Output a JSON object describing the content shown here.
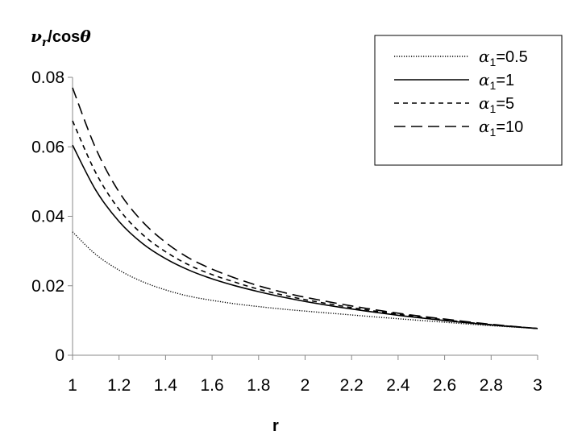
{
  "chart_data": {
    "type": "line",
    "title": "",
    "ylabel": "ν_r/cosθ",
    "ylabel_parts": {
      "main": "ν",
      "sub": "r",
      "rest": "/cos",
      "theta": "θ"
    },
    "xlabel": "r",
    "xlim": [
      1,
      3
    ],
    "ylim": [
      0,
      0.08
    ],
    "x_ticks": [
      1,
      1.2,
      1.4,
      1.6,
      1.8,
      2,
      2.2,
      2.4,
      2.6,
      2.8,
      3
    ],
    "x_tick_labels": [
      "1",
      "1.2",
      "1.4",
      "1.6",
      "1.8",
      "2",
      "2.2",
      "2.4",
      "2.6",
      "2.8",
      "3"
    ],
    "y_ticks": [
      0,
      0.02,
      0.04,
      0.06,
      0.08
    ],
    "y_tick_labels": [
      "0",
      "0.02",
      "0.04",
      "0.06",
      "0.08"
    ],
    "grid": false,
    "legend_position": "top-right",
    "x": [
      1,
      1.1,
      1.2,
      1.3,
      1.4,
      1.5,
      1.6,
      1.7,
      1.8,
      1.9,
      2,
      2.2,
      2.4,
      2.6,
      2.8,
      3
    ],
    "series": [
      {
        "name": "α₁=0.5",
        "name_sym": "α",
        "name_sub": "1",
        "name_rest": "=0.5",
        "style": "dotted",
        "values": [
          0.0355,
          0.029,
          0.0245,
          0.0212,
          0.0188,
          0.017,
          0.0158,
          0.0148,
          0.014,
          0.0133,
          0.0127,
          0.0116,
          0.0105,
          0.0095,
          0.0085,
          0.0077
        ]
      },
      {
        "name": "α₁=1",
        "name_sym": "α",
        "name_sub": "1",
        "name_rest": "=1",
        "style": "solid",
        "values": [
          0.0605,
          0.0475,
          0.0385,
          0.0322,
          0.0278,
          0.0245,
          0.022,
          0.02,
          0.0183,
          0.0168,
          0.0155,
          0.0133,
          0.0115,
          0.01,
          0.0087,
          0.0077
        ]
      },
      {
        "name": "α₁=5",
        "name_sym": "α",
        "name_sub": "1",
        "name_rest": "=5",
        "style": "short-dash",
        "values": [
          0.0675,
          0.0525,
          0.042,
          0.0348,
          0.0298,
          0.026,
          0.0232,
          0.021,
          0.019,
          0.0174,
          0.016,
          0.0137,
          0.0118,
          0.0102,
          0.0088,
          0.0077
        ]
      },
      {
        "name": "α₁=10",
        "name_sym": "α",
        "name_sub": "1",
        "name_rest": "=10",
        "style": "long-dash",
        "values": [
          0.077,
          0.0595,
          0.047,
          0.0385,
          0.0325,
          0.028,
          0.0248,
          0.0222,
          0.02,
          0.0182,
          0.0167,
          0.0142,
          0.0121,
          0.0104,
          0.0089,
          0.0077
        ]
      }
    ]
  }
}
